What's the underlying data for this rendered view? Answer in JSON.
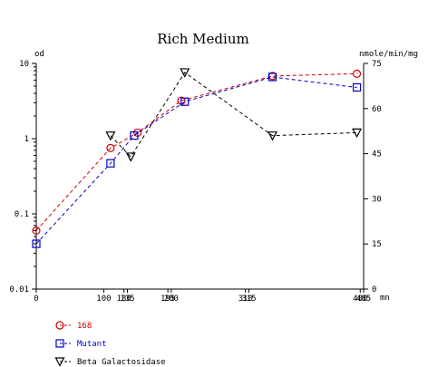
{
  "chart_data": {
    "type": "line",
    "title": "Rich Medium",
    "xlabel": "mn",
    "ylabel_left": "od",
    "ylabel_right": "nmole/min/mg",
    "x_ticks": [
      0,
      100,
      130,
      135,
      195,
      200,
      310,
      315,
      480,
      485
    ],
    "x_tick_labels": [
      "0",
      "100",
      "130",
      "135",
      "195",
      "200",
      "310",
      "315",
      "480",
      "485"
    ],
    "xlim": [
      0,
      485
    ],
    "y_left_scale": "log",
    "y_left_lim": [
      0.01,
      10
    ],
    "y_left_ticks": [
      0.01,
      0.1,
      1,
      10
    ],
    "y_left_tick_labels": [
      "0.01",
      "0.1",
      "1",
      "10"
    ],
    "y_right_scale": "linear",
    "y_right_lim": [
      0,
      75
    ],
    "y_right_ticks": [
      0,
      15,
      30,
      45,
      60,
      75
    ],
    "y_right_tick_labels": [
      "0",
      "15",
      "30",
      "45",
      "60",
      "75"
    ],
    "grid": false,
    "legend_position": "bottom-left",
    "series": [
      {
        "name": "168",
        "axis": "left",
        "marker": "circle",
        "color": "#cc0000",
        "x": [
          0,
          110,
          150,
          215,
          350,
          475
        ],
        "y": [
          0.06,
          0.75,
          1.2,
          3.2,
          6.8,
          7.3
        ]
      },
      {
        "name": "Mutant",
        "axis": "left",
        "marker": "square",
        "color": "#0000cc",
        "x": [
          0,
          110,
          145,
          220,
          350,
          475
        ],
        "y": [
          0.04,
          0.47,
          1.1,
          3.1,
          6.6,
          4.8
        ]
      },
      {
        "name": "Beta Galactosidase",
        "axis": "right",
        "marker": "triangle-down",
        "color": "#000000",
        "x": [
          110,
          140,
          220,
          350,
          475
        ],
        "y": [
          51,
          44,
          72,
          51,
          52
        ]
      }
    ]
  }
}
